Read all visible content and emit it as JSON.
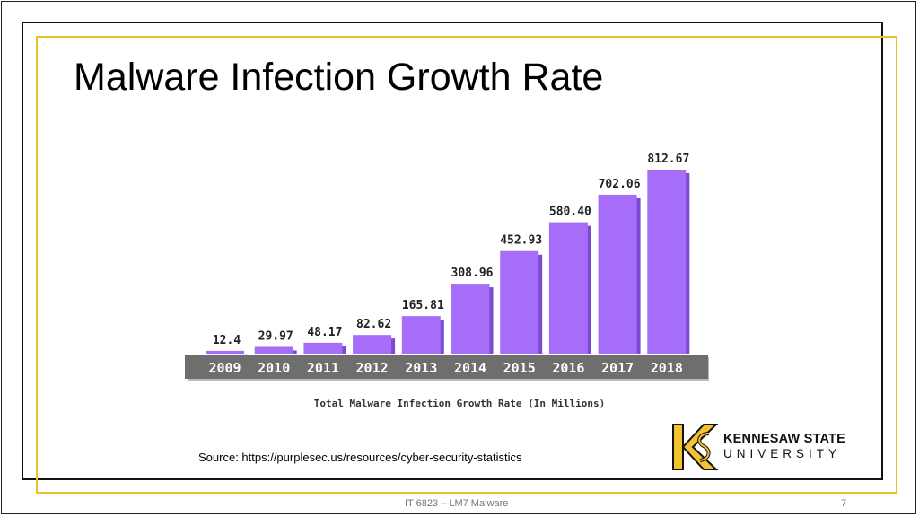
{
  "slide": {
    "title": "Malware Infection Growth Rate",
    "source": "Source: https://purplesec.us/resources/cyber-security-statistics",
    "footer": "IT 6823 – LM7 Malware",
    "page_number": "7"
  },
  "logo": {
    "line1": "KENNESAW STATE",
    "line2": "UNIVERSITY",
    "colors": {
      "gold": "#f2c230",
      "black": "#111111"
    }
  },
  "colors": {
    "bar": "#a66ef8",
    "bar_shadow": "#7a4ad0",
    "axis_band": "#6e6e6e",
    "frame_gold": "#e6c229"
  },
  "chart_data": {
    "type": "bar",
    "categories": [
      "2009",
      "2010",
      "2011",
      "2012",
      "2013",
      "2014",
      "2015",
      "2016",
      "2017",
      "2018"
    ],
    "values": [
      12.4,
      29.97,
      48.17,
      82.62,
      165.81,
      308.96,
      452.93,
      580.4,
      702.06,
      812.67
    ],
    "value_labels": [
      "12.4",
      "29.97",
      "48.17",
      "82.62",
      "165.81",
      "308.96",
      "452.93",
      "580.40",
      "702.06",
      "812.67"
    ],
    "title": "",
    "xlabel": "Total Malware Infection Growth Rate (In Millions)",
    "ylabel": "",
    "ylim": [
      0,
      812.67
    ],
    "grid": false,
    "legend": "none"
  }
}
